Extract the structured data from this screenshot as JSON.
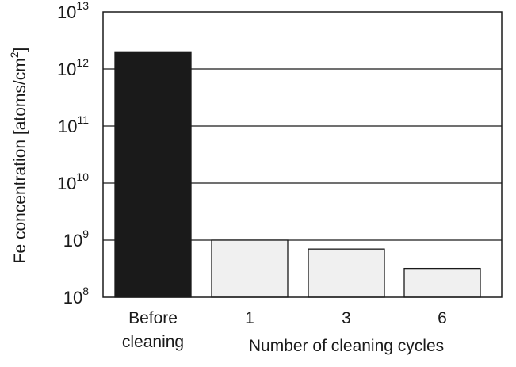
{
  "chart_data": {
    "type": "bar",
    "categories": [
      "Before cleaning",
      "1",
      "3",
      "6"
    ],
    "values": [
      2000000000000.0,
      1000000000.0,
      700000000.0,
      320000000.0
    ],
    "category_label_lines": [
      [
        "Before",
        "cleaning"
      ],
      [
        "1"
      ],
      [
        "3"
      ],
      [
        "6"
      ]
    ],
    "bar_colors": [
      "#1a1a1a",
      "#f0f0f0",
      "#f0f0f0",
      "#f0f0f0"
    ],
    "title": "",
    "ylabel": "Fe concentration [atoms/cm",
    "ylabel_superscript": "2",
    "ylabel_suffix": "]",
    "xlabel": "Number of cleaning cycles",
    "yscale": "log",
    "ylim": [
      100000000.0,
      10000000000000.0
    ],
    "yticks": [
      {
        "base": "10",
        "exp": "8"
      },
      {
        "base": "10",
        "exp": "9"
      },
      {
        "base": "10",
        "exp": "10"
      },
      {
        "base": "10",
        "exp": "11"
      },
      {
        "base": "10",
        "exp": "12"
      },
      {
        "base": "10",
        "exp": "13"
      }
    ],
    "grid": true,
    "legend": "none"
  }
}
